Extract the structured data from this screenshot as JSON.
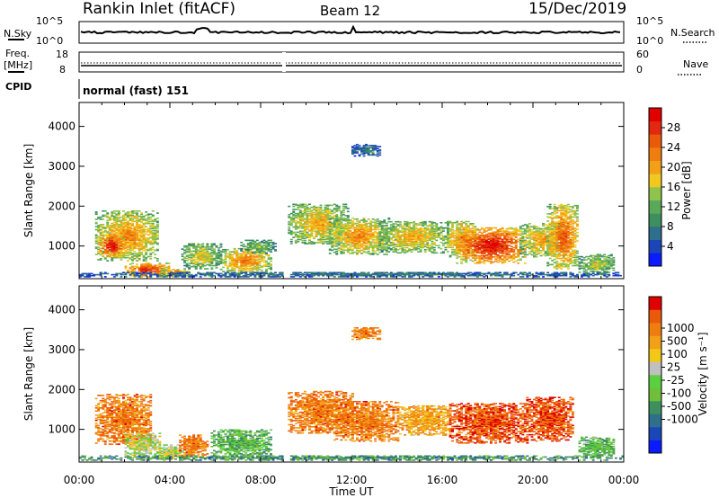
{
  "header": {
    "title": "Rankin Inlet (fitACF)",
    "beam": "Beam 12",
    "date": "15/Dec/2019"
  },
  "top_panels": {
    "nsky": {
      "label": "N.Sky",
      "left_ticks": [
        "10^5",
        "10^0"
      ],
      "right_ticks": [
        "10^5",
        "10^0"
      ],
      "right_label": "N.Search"
    },
    "freq": {
      "label_line1": "Freq.",
      "label_line2": "[MHz]",
      "left_ticks": [
        "18",
        "8"
      ],
      "right_ticks": [
        "60",
        "0"
      ],
      "right_label": "Nave"
    },
    "cpid": {
      "label": "CPID",
      "value": "normal (fast) 151"
    }
  },
  "chart_data": [
    {
      "type": "heatmap",
      "name": "power",
      "xlabel": "Time UT",
      "ylabel": "Slant Range [km]",
      "xticks": [
        "00:00",
        "04:00",
        "08:00",
        "12:00",
        "16:00",
        "20:00",
        "00:00"
      ],
      "xlim_hours": [
        0,
        24
      ],
      "ylim": [
        180,
        4600
      ],
      "yticks": [
        1000,
        2000,
        3000,
        4000
      ],
      "colorbar": {
        "label": "Power [dB]",
        "ticks": [
          "4",
          "8",
          "12",
          "16",
          "20",
          "24",
          "28"
        ],
        "range": [
          0,
          32
        ],
        "colors": [
          "#0a1cff",
          "#1a46b8",
          "#2f6e8c",
          "#3d8f5e",
          "#5aa85a",
          "#8fc34b",
          "#f0c820",
          "#f2a018",
          "#f07d10",
          "#ea5a0a",
          "#e22810",
          "#e00000"
        ]
      },
      "data_gap_hours": [
        8.9,
        9.2
      ],
      "regions": [
        {
          "t": [
            0.7,
            3.5
          ],
          "r": [
            620,
            1880
          ],
          "v": 19
        },
        {
          "t": [
            0.8,
            2.0
          ],
          "r": [
            720,
            1280
          ],
          "v": 26
        },
        {
          "t": [
            2.0,
            4.0
          ],
          "r": [
            220,
            560
          ],
          "v": 25
        },
        {
          "t": [
            3.6,
            4.8
          ],
          "r": [
            220,
            420
          ],
          "v": 22
        },
        {
          "t": [
            4.5,
            6.2
          ],
          "r": [
            420,
            1050
          ],
          "v": 15
        },
        {
          "t": [
            6.2,
            8.4
          ],
          "r": [
            300,
            940
          ],
          "v": 20
        },
        {
          "t": [
            7.1,
            8.6
          ],
          "r": [
            820,
            1150
          ],
          "v": 12
        },
        {
          "t": [
            9.2,
            11.8
          ],
          "r": [
            1050,
            2050
          ],
          "v": 17
        },
        {
          "t": [
            11.0,
            13.6
          ],
          "r": [
            780,
            1700
          ],
          "v": 19
        },
        {
          "t": [
            13.2,
            16.2
          ],
          "r": [
            820,
            1620
          ],
          "v": 17
        },
        {
          "t": [
            16.2,
            17.5
          ],
          "r": [
            720,
            1620
          ],
          "v": 21
        },
        {
          "t": [
            16.6,
            19.7
          ],
          "r": [
            560,
            1450
          ],
          "v": 27
        },
        {
          "t": [
            19.4,
            21.4
          ],
          "r": [
            720,
            1560
          ],
          "v": 18
        },
        {
          "t": [
            20.6,
            22.0
          ],
          "r": [
            420,
            2050
          ],
          "v": 22
        },
        {
          "t": [
            22.0,
            23.6
          ],
          "r": [
            280,
            800
          ],
          "v": 14
        },
        {
          "t": [
            0.0,
            24.0
          ],
          "r": [
            220,
            340
          ],
          "v": 6
        },
        {
          "t": [
            12.0,
            13.2
          ],
          "r": [
            3250,
            3560
          ],
          "v": 6
        }
      ]
    },
    {
      "type": "heatmap",
      "name": "velocity",
      "xlabel": "Time UT",
      "ylabel": "Slant Range [km]",
      "xticks": [
        "00:00",
        "04:00",
        "08:00",
        "12:00",
        "16:00",
        "20:00",
        "00:00"
      ],
      "xlim_hours": [
        0,
        24
      ],
      "ylim": [
        180,
        4600
      ],
      "yticks": [
        1000,
        2000,
        3000,
        4000
      ],
      "colorbar": {
        "label": "Velocity [m s⁻¹]",
        "ticks": [
          "1000",
          "500",
          "100",
          "25",
          "-25",
          "-100",
          "-500",
          "-1000"
        ],
        "colors": [
          "#0a1cff",
          "#1a46b8",
          "#2f6e8c",
          "#3d8f5e",
          "#6fbf3a",
          "#5ad040",
          "#c0c0c0",
          "#f2c818",
          "#f2a018",
          "#f07d10",
          "#ea5a0a",
          "#e00000"
        ]
      },
      "data_gap_hours": [
        8.9,
        9.2
      ],
      "regions": [
        {
          "t": [
            0.7,
            3.2
          ],
          "r": [
            620,
            1880
          ],
          "v": 9
        },
        {
          "t": [
            2.0,
            3.6
          ],
          "r": [
            320,
            900
          ],
          "v": 6
        },
        {
          "t": [
            3.5,
            4.6
          ],
          "r": [
            260,
            620
          ],
          "v": 6
        },
        {
          "t": [
            4.4,
            5.6
          ],
          "r": [
            300,
            850
          ],
          "v": 9
        },
        {
          "t": [
            5.8,
            8.4
          ],
          "r": [
            300,
            1000
          ],
          "v": 4
        },
        {
          "t": [
            9.2,
            12.0
          ],
          "r": [
            900,
            1950
          ],
          "v": 9
        },
        {
          "t": [
            11.2,
            14.0
          ],
          "r": [
            700,
            1700
          ],
          "v": 9
        },
        {
          "t": [
            14.0,
            16.4
          ],
          "r": [
            850,
            1600
          ],
          "v": 8
        },
        {
          "t": [
            16.3,
            19.8
          ],
          "r": [
            650,
            1650
          ],
          "v": 10
        },
        {
          "t": [
            19.6,
            21.8
          ],
          "r": [
            700,
            1800
          ],
          "v": 10
        },
        {
          "t": [
            22.0,
            23.6
          ],
          "r": [
            300,
            800
          ],
          "v": 4
        },
        {
          "t": [
            0.0,
            24.0
          ],
          "r": [
            220,
            340
          ],
          "v": 3
        },
        {
          "t": [
            12.0,
            13.2
          ],
          "r": [
            3250,
            3560
          ],
          "v": 9
        }
      ]
    }
  ]
}
